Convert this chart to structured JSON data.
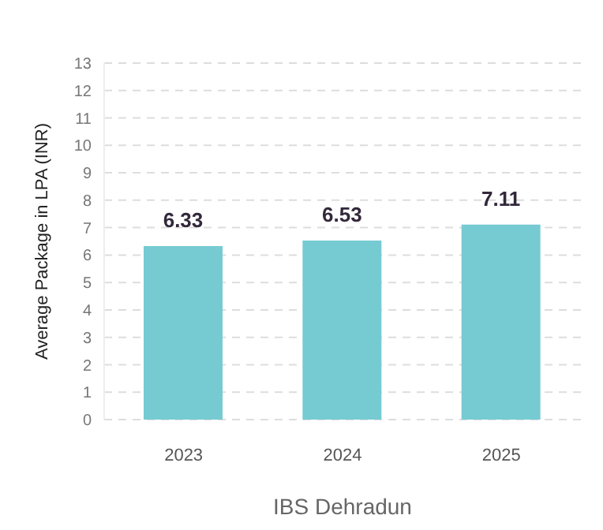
{
  "chart_data": {
    "type": "bar",
    "xlabel": "IBS Dehradun",
    "ylabel": "Average Package in LPA (INR)",
    "categories": [
      "2023",
      "2024",
      "2025"
    ],
    "values": [
      6.33,
      6.53,
      7.11
    ],
    "color": "#76cbd3",
    "ylim": [
      0,
      13
    ],
    "yticks": [
      0,
      1,
      2,
      3,
      4,
      5,
      6,
      7,
      8,
      9,
      10,
      11,
      12,
      13
    ],
    "grid": "y",
    "data_labels": true
  }
}
